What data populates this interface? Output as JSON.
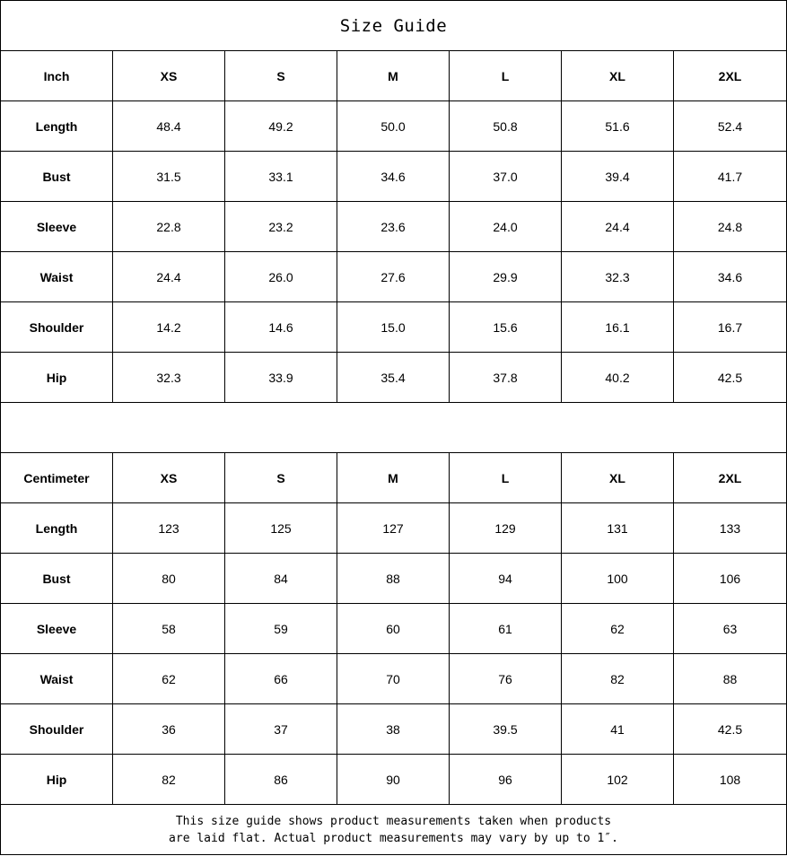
{
  "title": "Size Guide",
  "sizes": [
    "XS",
    "S",
    "M",
    "L",
    "XL",
    "2XL"
  ],
  "inch": {
    "unit_label": "Inch",
    "rows": [
      {
        "label": "Length",
        "values": [
          "48.4",
          "49.2",
          "50.0",
          "50.8",
          "51.6",
          "52.4"
        ]
      },
      {
        "label": "Bust",
        "values": [
          "31.5",
          "33.1",
          "34.6",
          "37.0",
          "39.4",
          "41.7"
        ]
      },
      {
        "label": "Sleeve",
        "values": [
          "22.8",
          "23.2",
          "23.6",
          "24.0",
          "24.4",
          "24.8"
        ]
      },
      {
        "label": "Waist",
        "values": [
          "24.4",
          "26.0",
          "27.6",
          "29.9",
          "32.3",
          "34.6"
        ]
      },
      {
        "label": "Shoulder",
        "values": [
          "14.2",
          "14.6",
          "15.0",
          "15.6",
          "16.1",
          "16.7"
        ]
      },
      {
        "label": "Hip",
        "values": [
          "32.3",
          "33.9",
          "35.4",
          "37.8",
          "40.2",
          "42.5"
        ]
      }
    ]
  },
  "centimeter": {
    "unit_label": "Centimeter",
    "rows": [
      {
        "label": "Length",
        "values": [
          "123",
          "125",
          "127",
          "129",
          "131",
          "133"
        ]
      },
      {
        "label": "Bust",
        "values": [
          "80",
          "84",
          "88",
          "94",
          "100",
          "106"
        ]
      },
      {
        "label": "Sleeve",
        "values": [
          "58",
          "59",
          "60",
          "61",
          "62",
          "63"
        ]
      },
      {
        "label": "Waist",
        "values": [
          "62",
          "66",
          "70",
          "76",
          "82",
          "88"
        ]
      },
      {
        "label": "Shoulder",
        "values": [
          "36",
          "37",
          "38",
          "39.5",
          "41",
          "42.5"
        ]
      },
      {
        "label": "Hip",
        "values": [
          "82",
          "86",
          "90",
          "96",
          "102",
          "108"
        ]
      }
    ]
  },
  "note": {
    "line1": "This size guide shows product measurements taken when products",
    "line2": "are laid flat. Actual product measurements may vary by up to 1″."
  }
}
